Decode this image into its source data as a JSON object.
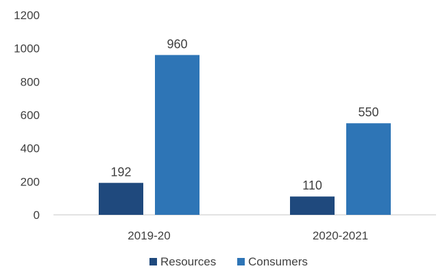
{
  "chart_data": {
    "type": "bar",
    "title": "",
    "xlabel": "",
    "ylabel": "",
    "categories": [
      "2019-20",
      "2020-2021"
    ],
    "series": [
      {
        "name": "Resources",
        "values": [
          192,
          110
        ],
        "color": "#1f497d"
      },
      {
        "name": "Consumers",
        "values": [
          960,
          550
        ],
        "color": "#2e75b6"
      }
    ],
    "ylim": [
      0,
      1200
    ],
    "yticks": [
      "0",
      "200",
      "400",
      "600",
      "800",
      "1000",
      "1200"
    ],
    "data_labels": [
      [
        "192",
        "110"
      ],
      [
        "960",
        "550"
      ]
    ],
    "legend_position": "bottom",
    "grid": false,
    "axis_color": "#d9d9d9",
    "text_color": "#404040"
  }
}
